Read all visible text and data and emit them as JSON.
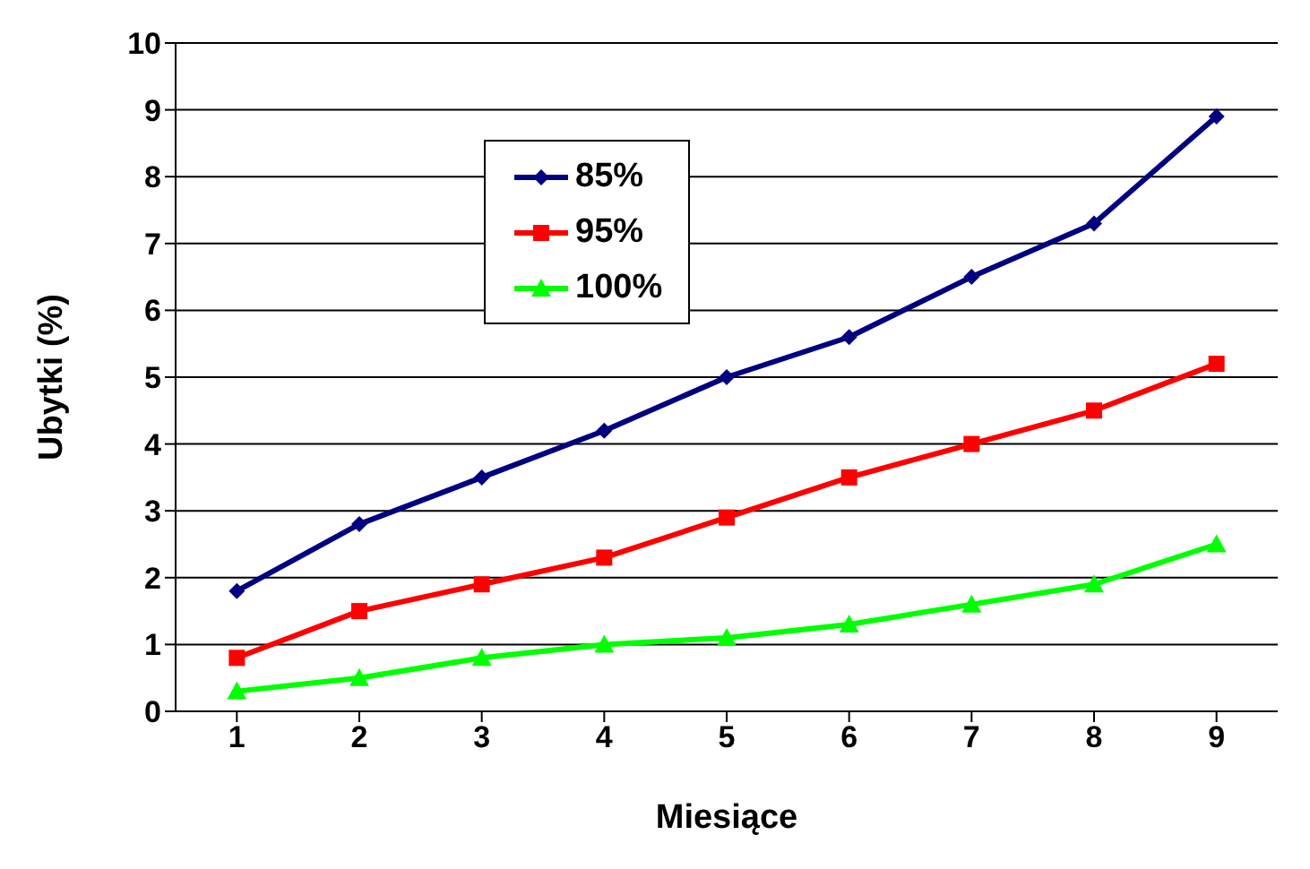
{
  "chart_data": {
    "type": "line",
    "xlabel": "Miesiące",
    "ylabel": "Ubytki (%)",
    "categories": [
      "1",
      "2",
      "3",
      "4",
      "5",
      "6",
      "7",
      "8",
      "9"
    ],
    "series": [
      {
        "name": "85%",
        "color": "#000080",
        "marker": "diamond",
        "values": [
          1.8,
          2.8,
          3.5,
          4.2,
          5.0,
          5.6,
          6.5,
          7.3,
          8.9
        ]
      },
      {
        "name": "95%",
        "color": "#ff0000",
        "marker": "square",
        "values": [
          0.8,
          1.5,
          1.9,
          2.3,
          2.9,
          3.5,
          4.0,
          4.5,
          5.2
        ]
      },
      {
        "name": "100%",
        "color": "#00ff00",
        "marker": "triangle",
        "values": [
          0.3,
          0.5,
          0.8,
          1.0,
          1.1,
          1.3,
          1.6,
          1.9,
          2.5
        ]
      }
    ],
    "ylim": [
      0,
      10
    ],
    "yticks": [
      0,
      1,
      2,
      3,
      4,
      5,
      6,
      7,
      8,
      9,
      10
    ],
    "grid": "y",
    "legend": "top left",
    "line_style": "solid"
  }
}
